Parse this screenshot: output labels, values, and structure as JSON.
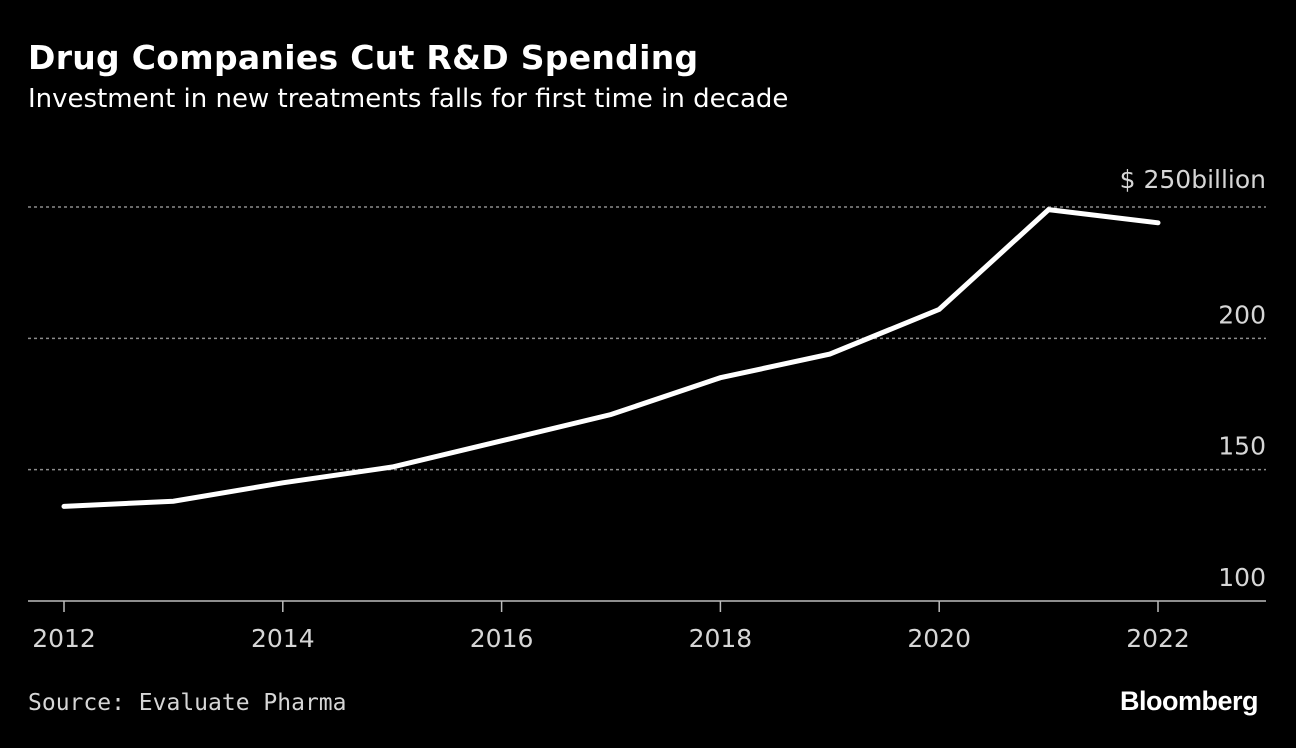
{
  "header": {
    "title": "Drug Companies Cut R&D Spending",
    "subtitle": "Investment in new treatments falls for first time in decade"
  },
  "footer": {
    "source": "Source: Evaluate Pharma",
    "logo_text": "Bloomberg"
  },
  "colors": {
    "background": "#000000",
    "line": "#ffffff",
    "grid": "#8c8c8c",
    "tick_text": "#d6d6d6"
  },
  "chart_data": {
    "type": "line",
    "title": "Drug Companies Cut R&D Spending",
    "subtitle": "Investment in new treatments falls for first time in decade",
    "xlabel": "",
    "ylabel": "",
    "unit": "$ billion",
    "x": [
      2012,
      2013,
      2014,
      2015,
      2016,
      2017,
      2018,
      2019,
      2020,
      2021,
      2022
    ],
    "series": [
      {
        "values": [
          136,
          138,
          145,
          151,
          161,
          171,
          185,
          194,
          211,
          249,
          244
        ]
      }
    ],
    "xlim": [
      2011.7,
      2023
    ],
    "ylim": [
      100,
      250
    ],
    "x_ticks": [
      2012,
      2014,
      2016,
      2018,
      2020,
      2022
    ],
    "x_tick_labels": [
      "2012",
      "2014",
      "2016",
      "2018",
      "2020",
      "2022"
    ],
    "y_ticks": [
      100,
      150,
      200,
      250
    ],
    "y_tick_labels": [
      "100",
      "150",
      "200",
      "$ 250billion"
    ],
    "grid": true,
    "y_axis_position": "right",
    "legend": "none"
  }
}
